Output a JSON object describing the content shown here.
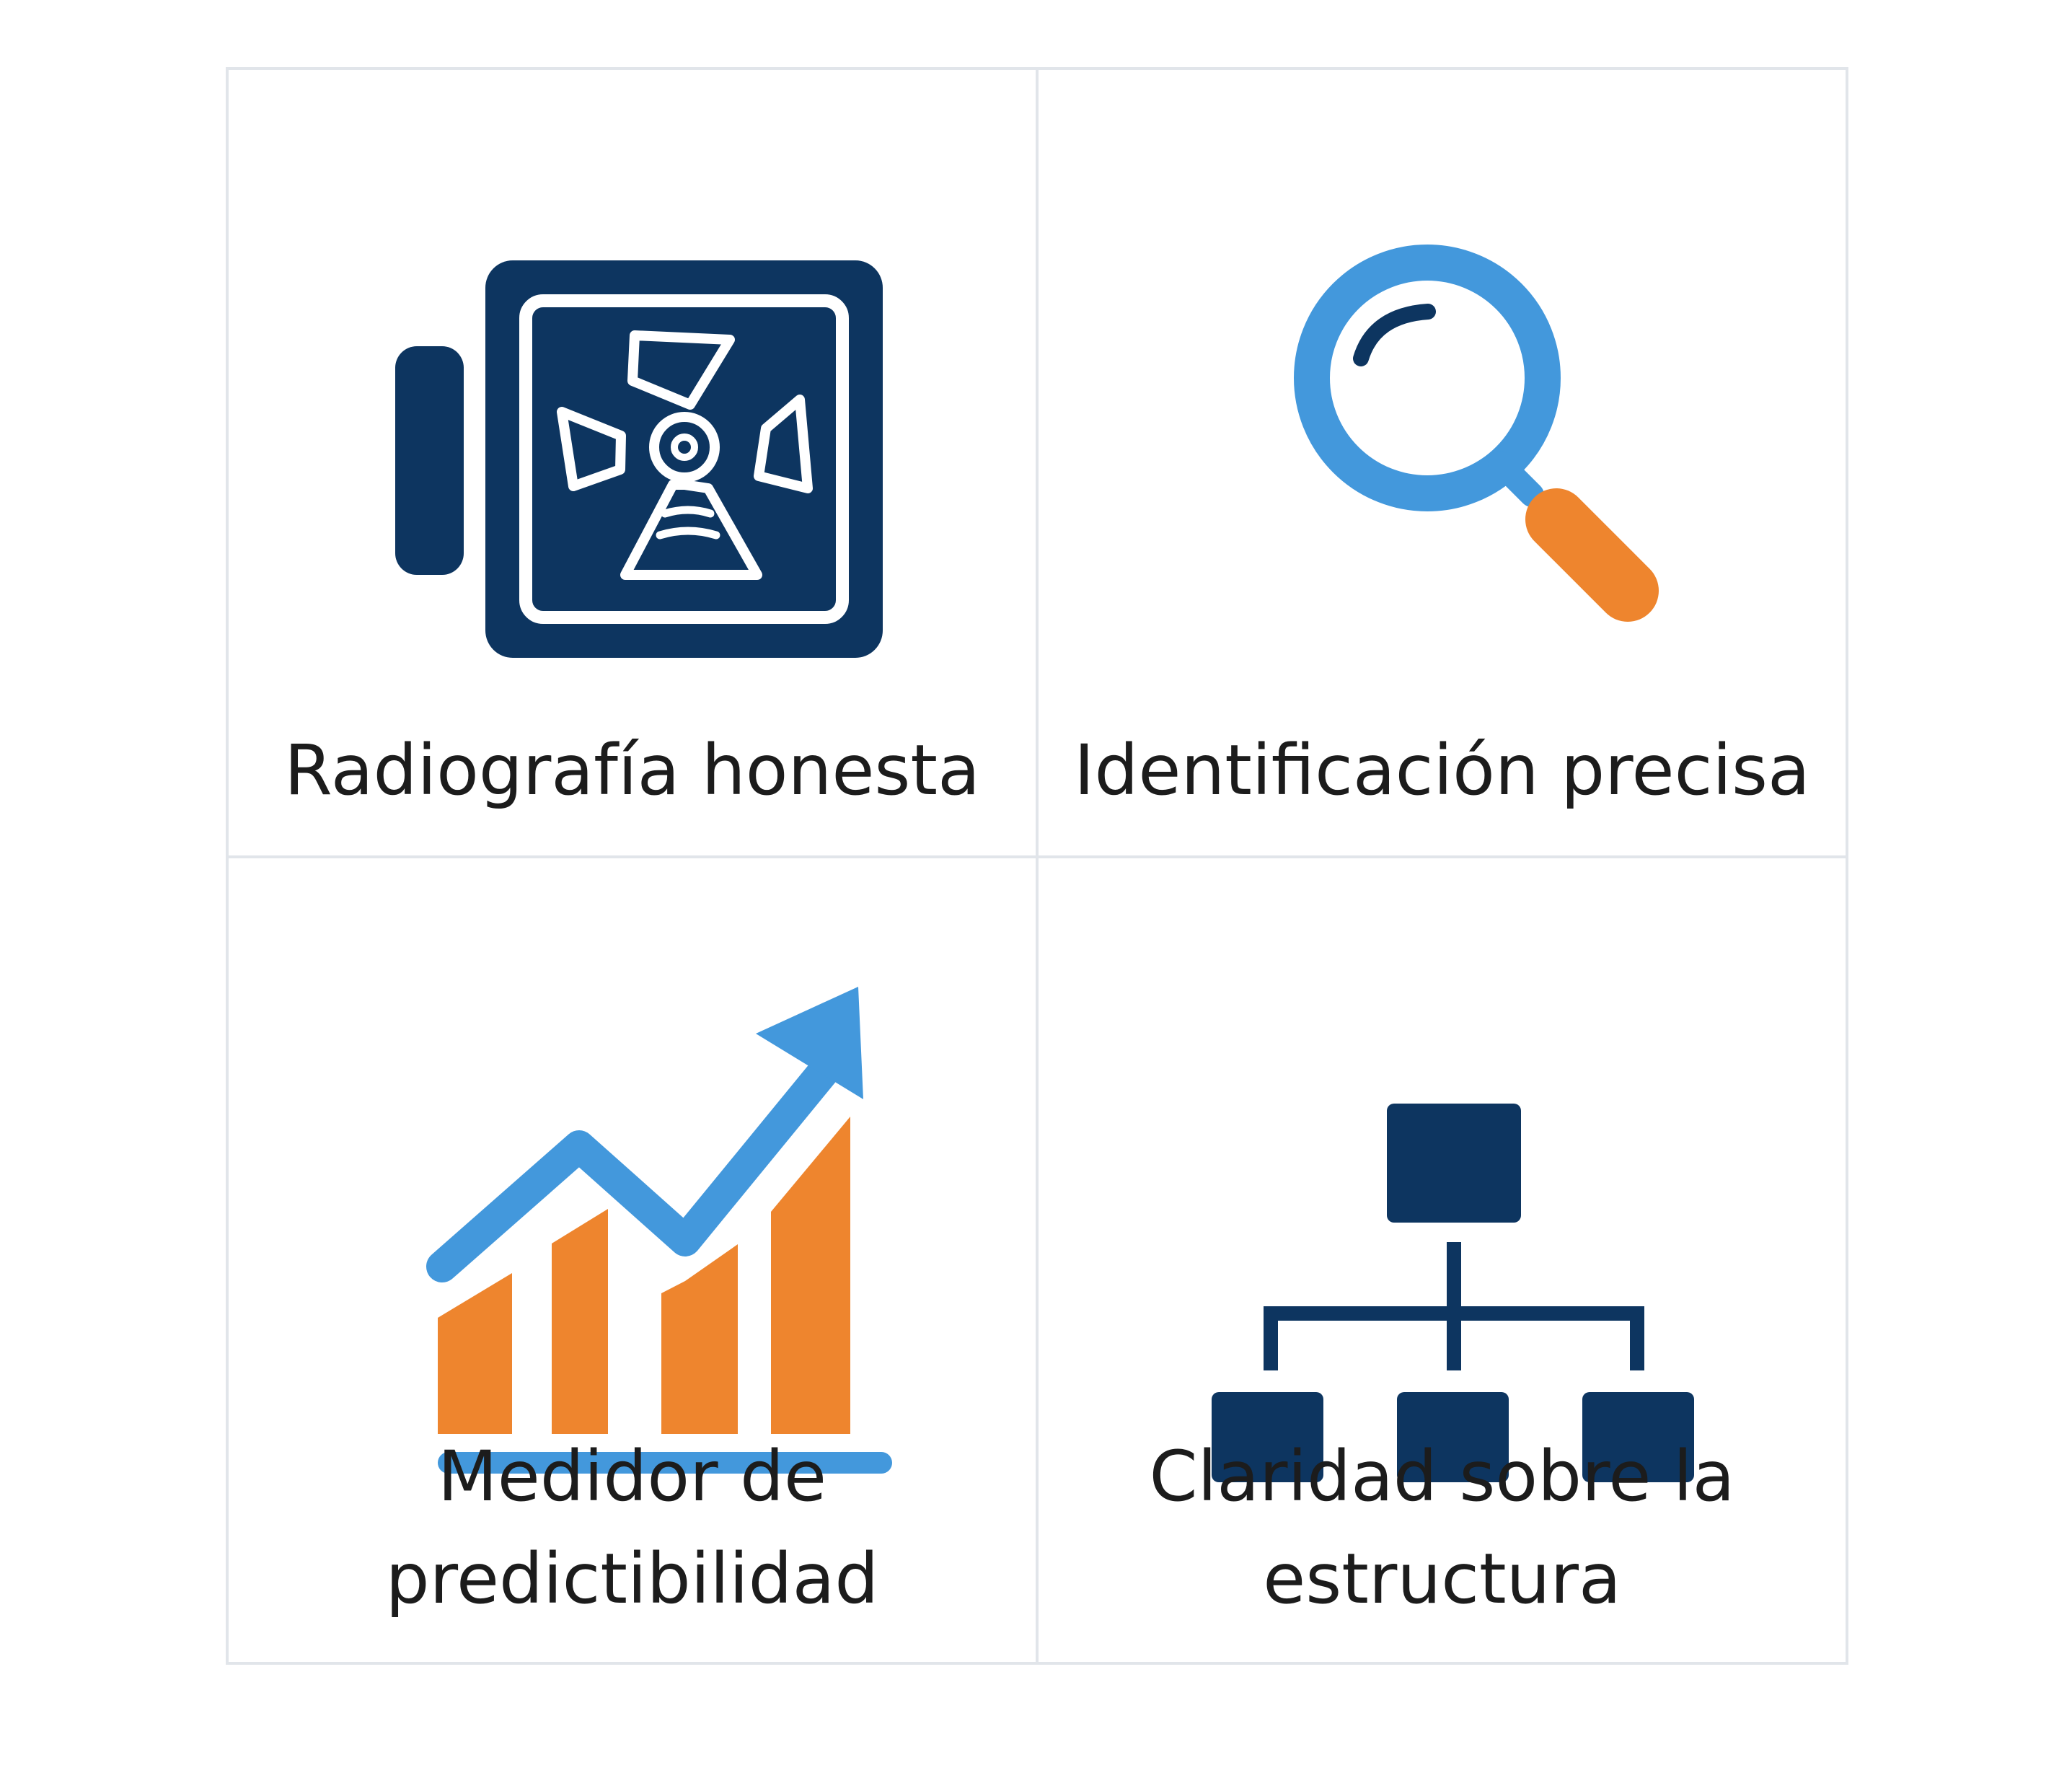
{
  "colors": {
    "navy": "#0d3560",
    "blue": "#4398dc",
    "orange": "#ee852e",
    "border": "#e1e5ea",
    "text": "#1c1c1c"
  },
  "cards": [
    {
      "icon": "xray-scanner-icon",
      "label": "Radiografía honesta"
    },
    {
      "icon": "magnifying-glass-icon",
      "label": "Identificación precisa"
    },
    {
      "icon": "growth-chart-icon",
      "label": "Medidor de\npredictibilidad"
    },
    {
      "icon": "org-structure-icon",
      "label": "Claridad sobre la\nestructura"
    }
  ]
}
